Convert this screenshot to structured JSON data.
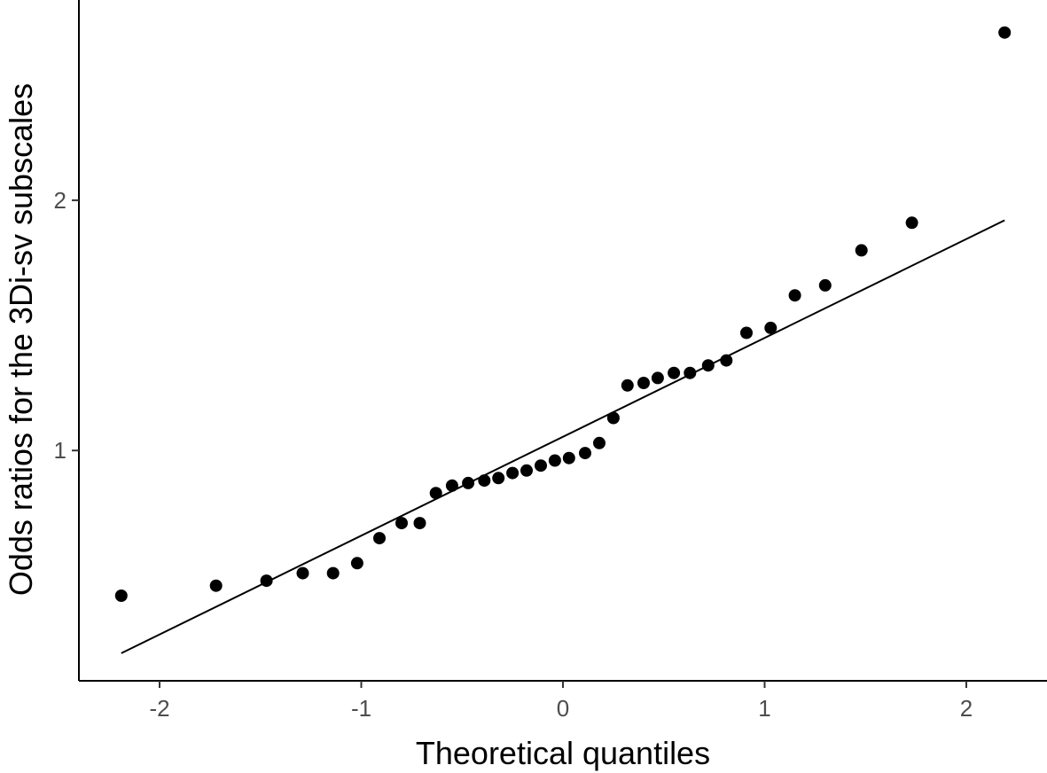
{
  "chart_data": {
    "type": "scatter",
    "title": "",
    "xlabel": "Theoretical quantiles",
    "ylabel": "Odds ratios for the 3Di-sv subscales",
    "xlim": [
      -2.4,
      2.4
    ],
    "ylim": [
      0.08,
      2.8
    ],
    "x_ticks": [
      -2,
      -1,
      0,
      1,
      2
    ],
    "x_tick_labels": [
      "-2",
      "-1",
      "0",
      "1",
      "2"
    ],
    "y_ticks": [
      1,
      2
    ],
    "y_tick_labels": [
      "1",
      "2"
    ],
    "grid": false,
    "legend": "none",
    "series": [
      {
        "points": [
          [
            -2.19,
            0.42
          ],
          [
            -1.72,
            0.46
          ],
          [
            -1.47,
            0.48
          ],
          [
            -1.29,
            0.51
          ],
          [
            -1.14,
            0.51
          ],
          [
            -1.02,
            0.55
          ],
          [
            -0.91,
            0.65
          ],
          [
            -0.8,
            0.71
          ],
          [
            -0.71,
            0.71
          ],
          [
            -0.63,
            0.83
          ],
          [
            -0.55,
            0.86
          ],
          [
            -0.47,
            0.87
          ],
          [
            -0.39,
            0.88
          ],
          [
            -0.32,
            0.89
          ],
          [
            -0.25,
            0.91
          ],
          [
            -0.18,
            0.92
          ],
          [
            -0.11,
            0.94
          ],
          [
            -0.04,
            0.96
          ],
          [
            0.03,
            0.97
          ],
          [
            0.11,
            0.99
          ],
          [
            0.18,
            1.03
          ],
          [
            0.25,
            1.13
          ],
          [
            0.32,
            1.26
          ],
          [
            0.4,
            1.27
          ],
          [
            0.47,
            1.29
          ],
          [
            0.55,
            1.31
          ],
          [
            0.63,
            1.31
          ],
          [
            0.72,
            1.34
          ],
          [
            0.81,
            1.36
          ],
          [
            0.91,
            1.47
          ],
          [
            1.03,
            1.49
          ],
          [
            1.15,
            1.62
          ],
          [
            1.3,
            1.66
          ],
          [
            1.48,
            1.8
          ],
          [
            1.73,
            1.91
          ],
          [
            2.19,
            2.67
          ]
        ]
      }
    ],
    "reference_line": {
      "x": [
        -2.19,
        2.19
      ],
      "y": [
        0.19,
        1.92
      ]
    },
    "colors": {
      "points": "#000000",
      "line": "#000000",
      "tick_label": "#4d4d4d"
    }
  }
}
